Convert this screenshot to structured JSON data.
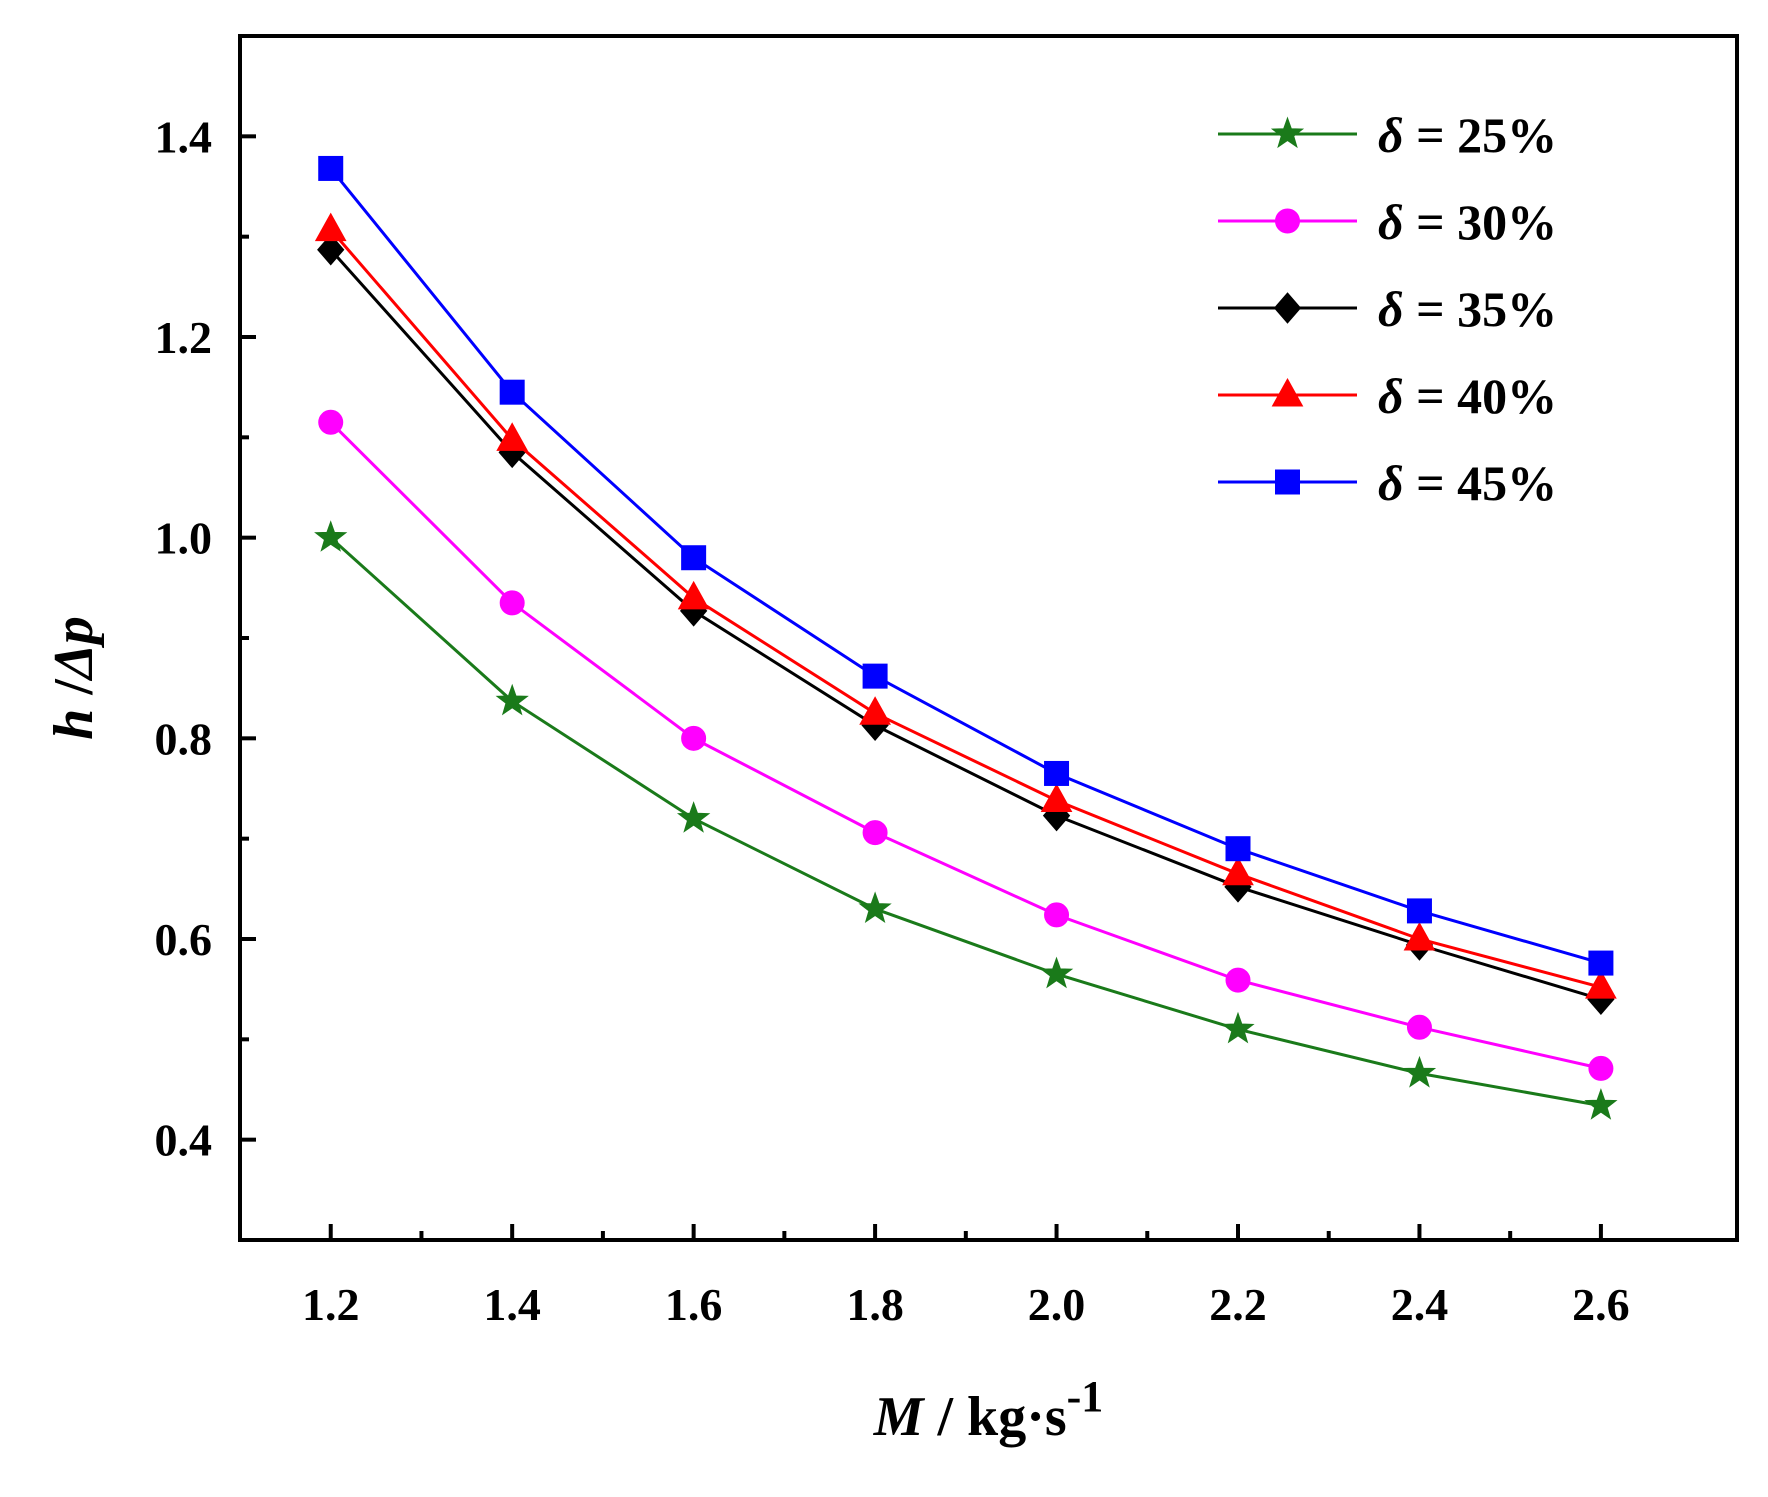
{
  "chart_data": {
    "type": "line",
    "title": "",
    "xlabel": {
      "var": "M",
      "rest": " / kg·s",
      "sup": "-1"
    },
    "ylabel": {
      "var1": "h",
      "sep": " /",
      "var2": "Δp"
    },
    "xlim": [
      1.1,
      2.75
    ],
    "ylim": [
      0.3,
      1.5
    ],
    "xticks": [
      "1.2",
      "1.4",
      "1.6",
      "1.8",
      "2.0",
      "2.2",
      "2.4",
      "2.6"
    ],
    "yticks": [
      "0.4",
      "0.6",
      "0.8",
      "1.0",
      "1.2",
      "1.4"
    ],
    "x": [
      1.2,
      1.4,
      1.6,
      1.8,
      2.0,
      2.2,
      2.4,
      2.6
    ],
    "legend_position": "top-right",
    "series": [
      {
        "name": "δ = 25%",
        "sym": "δ",
        "text": " = 25%",
        "color": "#1a7a1a",
        "marker": "star",
        "values": [
          1.0,
          0.837,
          0.72,
          0.63,
          0.565,
          0.51,
          0.466,
          0.434
        ]
      },
      {
        "name": "δ = 30%",
        "sym": "δ",
        "text": " = 30%",
        "color": "#ff00ff",
        "marker": "circle",
        "values": [
          1.115,
          0.935,
          0.8,
          0.706,
          0.624,
          0.559,
          0.512,
          0.471
        ]
      },
      {
        "name": "δ = 35%",
        "sym": "δ",
        "text": " = 35%",
        "color": "#000000",
        "marker": "diamond",
        "values": [
          1.287,
          1.085,
          0.927,
          0.813,
          0.723,
          0.652,
          0.594,
          0.54
        ]
      },
      {
        "name": "δ = 40%",
        "sym": "δ",
        "text": " = 40%",
        "color": "#ff0000",
        "marker": "triangle",
        "values": [
          1.307,
          1.098,
          0.94,
          0.825,
          0.738,
          0.665,
          0.6,
          0.552
        ]
      },
      {
        "name": "δ = 45%",
        "sym": "δ",
        "text": " = 45%",
        "color": "#0000ff",
        "marker": "square",
        "values": [
          1.368,
          1.145,
          0.98,
          0.862,
          0.765,
          0.69,
          0.628,
          0.576
        ]
      }
    ]
  }
}
